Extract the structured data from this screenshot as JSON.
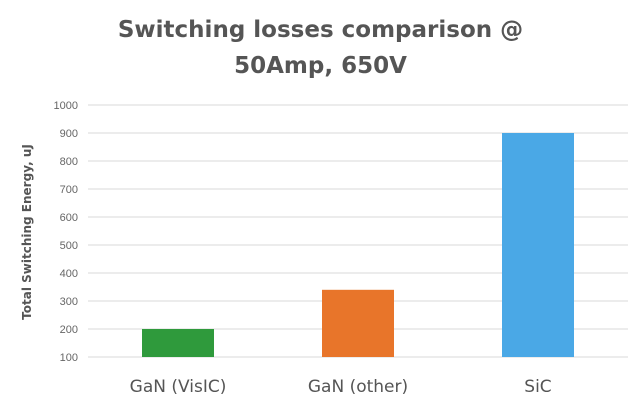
{
  "chart_data": {
    "type": "bar",
    "title_line1": "Switching losses comparison @",
    "title_line2": "50Amp, 650V",
    "xlabel": "",
    "ylabel": "Total Switching Energy, uJ",
    "categories": [
      "GaN (VisIC)",
      "GaN (other)",
      "SiC"
    ],
    "values": [
      200,
      340,
      900
    ],
    "colors": [
      "#2f9a3c",
      "#e8752a",
      "#4aa8e6"
    ],
    "ylim": [
      100,
      1000
    ],
    "yticks": [
      100,
      200,
      300,
      400,
      500,
      600,
      700,
      800,
      900,
      1000
    ],
    "grid": true,
    "legend": "none"
  }
}
